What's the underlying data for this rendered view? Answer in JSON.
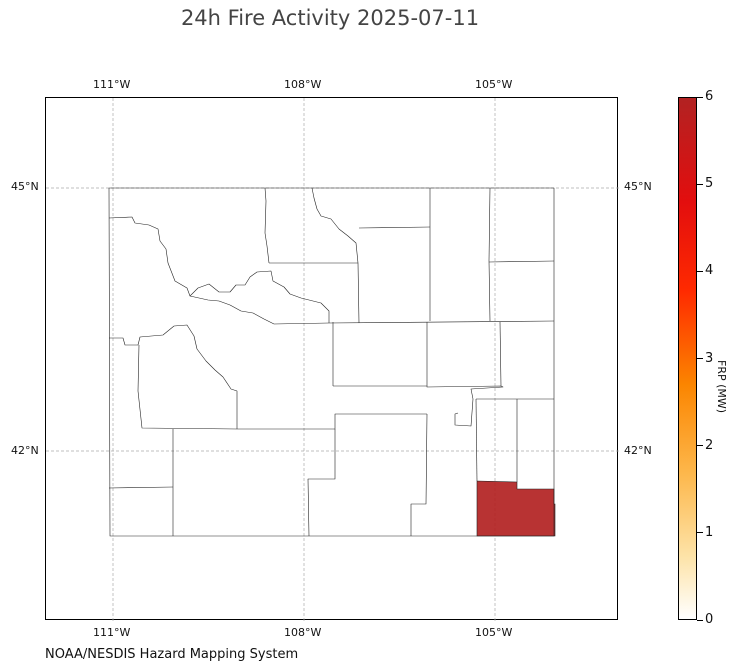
{
  "title": "24h Fire Activity 2025-07-11",
  "credit": "NOAA/NESDIS Hazard Mapping System",
  "axes": {
    "lon_ticks": [
      "111°W",
      "108°W",
      "105°W"
    ],
    "lat_ticks": [
      "45°N",
      "42°N"
    ]
  },
  "colorbar": {
    "label": "FRP (MW)",
    "ticks": [
      "0",
      "1",
      "2",
      "3",
      "4",
      "5",
      "6"
    ],
    "range": [
      0,
      6
    ],
    "colors": [
      "#ffffff",
      "#fde3a8",
      "#fdb74b",
      "#fb8500",
      "#ff2a00",
      "#e30e0e",
      "#b22222"
    ]
  },
  "map": {
    "region": "Wyoming counties",
    "fire_fill_color": "#b22222",
    "fire_region_value": 6
  }
}
